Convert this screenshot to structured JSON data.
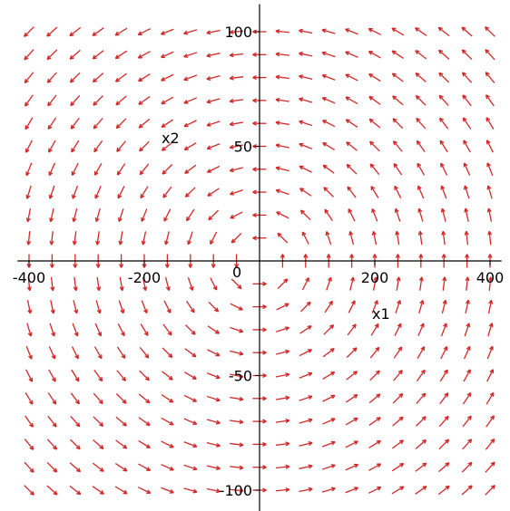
{
  "chart_data": {
    "type": "vector_field",
    "title": "",
    "xlabel": "x1",
    "ylabel": "x2",
    "xlim": [
      -420,
      420
    ],
    "ylim": [
      -112,
      112
    ],
    "grid": false,
    "field": {
      "dx1_dt": "-4*x2",
      "dx2_dt": "x1/4",
      "direction": "counterclockwise"
    },
    "sample_x": [
      -400,
      -360,
      -320,
      -280,
      -240,
      -200,
      -160,
      -120,
      -80,
      -40,
      0,
      40,
      80,
      120,
      160,
      200,
      240,
      280,
      320,
      360,
      400
    ],
    "sample_y": [
      -100,
      -90,
      -80,
      -70,
      -60,
      -50,
      -40,
      -30,
      -20,
      -10,
      0,
      10,
      20,
      30,
      40,
      50,
      60,
      70,
      80,
      90,
      100
    ],
    "x_ticks": [
      {
        "value": -400,
        "label": "-400"
      },
      {
        "value": -200,
        "label": "-200"
      },
      {
        "value": 200,
        "label": "200"
      },
      {
        "value": 400,
        "label": "400"
      }
    ],
    "y_ticks": [
      {
        "value": 100,
        "label": "100"
      },
      {
        "value": 50,
        "label": "50"
      },
      {
        "value": -50,
        "label": "-50"
      },
      {
        "value": -100,
        "label": "-100"
      }
    ],
    "origin_label": "0",
    "colors": {
      "arrows": "#d22828",
      "axes": "#000000"
    }
  }
}
